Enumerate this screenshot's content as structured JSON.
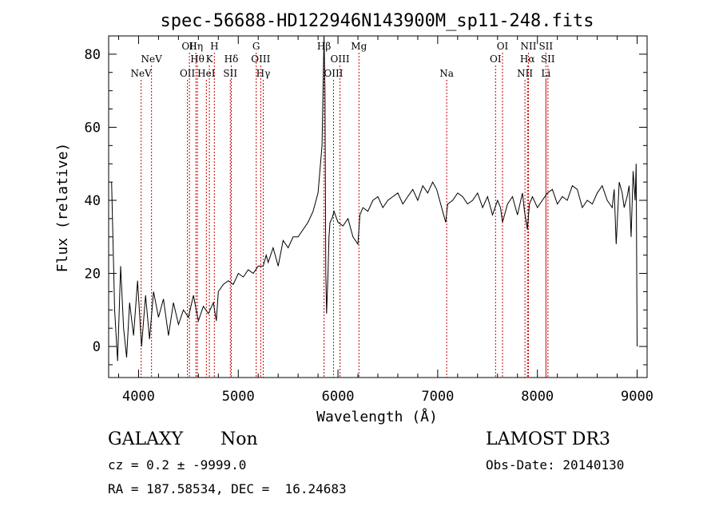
{
  "chart_data": {
    "type": "line",
    "title": "spec-56688-HD122946N143900M_sp11-248.fits",
    "xlabel": "Wavelength (Å)",
    "ylabel": "Flux (relative)",
    "xlim": [
      3700,
      9100
    ],
    "ylim": [
      -8.5,
      85
    ],
    "xticks": [
      4000,
      5000,
      6000,
      7000,
      8000,
      9000
    ],
    "yticks": [
      0,
      20,
      40,
      60,
      80
    ],
    "grid": false,
    "series": [
      {
        "name": "spectrum",
        "x": [
          3730,
          3760,
          3790,
          3820,
          3850,
          3880,
          3910,
          3950,
          3990,
          4030,
          4070,
          4110,
          4150,
          4200,
          4250,
          4300,
          4350,
          4400,
          4450,
          4500,
          4550,
          4600,
          4650,
          4700,
          4750,
          4780,
          4800,
          4850,
          4900,
          4950,
          5000,
          5050,
          5100,
          5150,
          5200,
          5250,
          5280,
          5300,
          5350,
          5400,
          5450,
          5500,
          5550,
          5600,
          5650,
          5700,
          5750,
          5800,
          5840,
          5860,
          5870,
          5878,
          5886,
          5900,
          5910,
          5920,
          5940,
          5960,
          6000,
          6050,
          6100,
          6150,
          6200,
          6220,
          6250,
          6300,
          6350,
          6400,
          6450,
          6500,
          6550,
          6600,
          6650,
          6700,
          6750,
          6800,
          6850,
          6900,
          6950,
          6990,
          7050,
          7080,
          7100,
          7150,
          7200,
          7250,
          7300,
          7350,
          7400,
          7450,
          7500,
          7550,
          7600,
          7630,
          7650,
          7700,
          7750,
          7800,
          7850,
          7870,
          7900,
          7920,
          7950,
          8000,
          8050,
          8100,
          8150,
          8200,
          8250,
          8300,
          8350,
          8400,
          8450,
          8500,
          8550,
          8600,
          8650,
          8700,
          8750,
          8770,
          8790,
          8820,
          8850,
          8870,
          8900,
          8920,
          8940,
          8960,
          8980,
          8990,
          9000
        ],
        "y": [
          45,
          10,
          -4,
          22,
          5,
          -3,
          12,
          3,
          18,
          0,
          14,
          2,
          15,
          8,
          13,
          3,
          12,
          6,
          10,
          8,
          14,
          7,
          11,
          9,
          12,
          7,
          15,
          17,
          18,
          17,
          20,
          19,
          21,
          20,
          22,
          22,
          25,
          23,
          27,
          22,
          29,
          27,
          30,
          30,
          32,
          34,
          37,
          42,
          55,
          85,
          70,
          20,
          9,
          20,
          30,
          34,
          35,
          37,
          34,
          33,
          35,
          30,
          28,
          36,
          38,
          37,
          40,
          41,
          38,
          40,
          41,
          42,
          39,
          41,
          43,
          40,
          44,
          42,
          45,
          43,
          37,
          34,
          39,
          40,
          42,
          41,
          39,
          40,
          42,
          38,
          41,
          36,
          40,
          38,
          34,
          39,
          41,
          36,
          42,
          37,
          32,
          39,
          41,
          38,
          40,
          42,
          43,
          39,
          41,
          40,
          44,
          43,
          38,
          40,
          39,
          42,
          44,
          40,
          38,
          43,
          28,
          45,
          42,
          38,
          41,
          44,
          30,
          48,
          40,
          50,
          0
        ]
      }
    ],
    "lines": [
      {
        "name": "NeV",
        "wl": 4026,
        "row": 3
      },
      {
        "name": "NeV",
        "wl": 4130,
        "row": 2
      },
      {
        "name": "OII",
        "wl": 4490,
        "row": 3
      },
      {
        "name": "OII",
        "wl": 4510,
        "row": 1
      },
      {
        "name": "Hη",
        "wl": 4575,
        "row": 1
      },
      {
        "name": "Hθ",
        "wl": 4590,
        "row": 2
      },
      {
        "name": "HeI",
        "wl": 4680,
        "row": 3
      },
      {
        "name": "K",
        "wl": 4710,
        "row": 2
      },
      {
        "name": "H",
        "wl": 4760,
        "row": 1
      },
      {
        "name": "Hδ",
        "wl": 4930,
        "row": 2
      },
      {
        "name": "SII",
        "wl": 4920,
        "row": 3
      },
      {
        "name": "G",
        "wl": 5180,
        "row": 1
      },
      {
        "name": "OIII",
        "wl": 5225,
        "row": 2
      },
      {
        "name": "Hγ",
        "wl": 5250,
        "row": 3
      },
      {
        "name": "Hβ",
        "wl": 5860,
        "row": 1
      },
      {
        "name": "OIII",
        "wl": 5955,
        "row": 3
      },
      {
        "name": "OIII",
        "wl": 6020,
        "row": 2
      },
      {
        "name": "Mg",
        "wl": 6210,
        "row": 1
      },
      {
        "name": "Na",
        "wl": 7090,
        "row": 3
      },
      {
        "name": "OI",
        "wl": 7580,
        "row": 2
      },
      {
        "name": "OI",
        "wl": 7650,
        "row": 1
      },
      {
        "name": "Hα",
        "wl": 7900,
        "row": 2
      },
      {
        "name": "NII",
        "wl": 7875,
        "row": 3
      },
      {
        "name": "NII",
        "wl": 7910,
        "row": 1
      },
      {
        "name": "SII",
        "wl": 8085,
        "row": 1
      },
      {
        "name": "SII",
        "wl": 8105,
        "row": 2
      },
      {
        "name": "Li",
        "wl": 8085,
        "row": 3
      }
    ]
  },
  "info": {
    "class": "GALAXY",
    "subclass": "Non",
    "survey": "LAMOST DR3",
    "cz": "cz = 0.2 ± -9999.0",
    "obs_date": "Obs-Date: 20140130",
    "coords": "RA = 187.58534, DEC =  16.24683"
  },
  "colors": {
    "axis": "#000000",
    "spectrum": "#000000",
    "line_marker": "#cc0000"
  }
}
